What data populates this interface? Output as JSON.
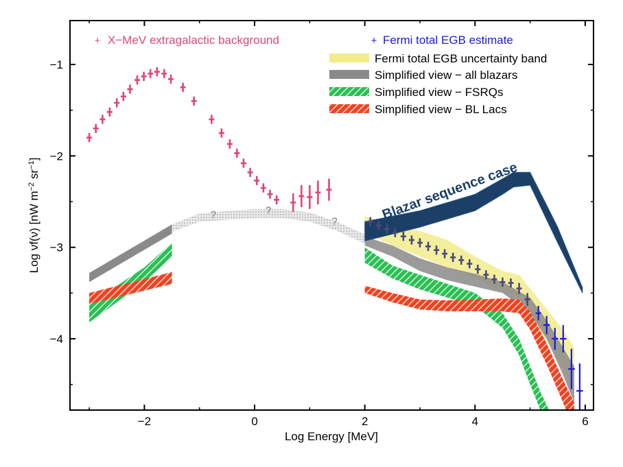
{
  "chart_data": {
    "type": "line",
    "title": "",
    "xlabel": "Log Energy [MeV]",
    "ylabel_main": "Log νf(ν) [nW m",
    "ylabel_sup1": "−2",
    "ylabel_mid": " sr",
    "ylabel_sup2": "−1",
    "ylabel_end": "]",
    "xlim": [
      -3.35,
      6.15
    ],
    "ylim": [
      -4.78,
      -0.52
    ],
    "xticks": [
      -2,
      0,
      2,
      4,
      6
    ],
    "xtick_labels": [
      "−2",
      "0",
      "2",
      "4",
      "6"
    ],
    "yticks": [
      -1,
      -2,
      -3,
      -4
    ],
    "ytick_labels": [
      "−1",
      "−2",
      "−3",
      "−4"
    ],
    "grid": false,
    "colors": {
      "xmev": "#e0457b",
      "fermi": "#1a1ae0",
      "band": "#f2ec8c",
      "blazars": "#8a8a8a",
      "fsrq": "#22b34a",
      "bllac": "#ee4422",
      "sequence": "#1b3f66",
      "bridge": "#cfcfcf"
    },
    "legend": {
      "xmev_label": "X−MeV extragalactic background",
      "fermi_label": "Fermi total EGB estimate",
      "band_label": "Fermi total EGB uncertainty band",
      "blazars_label": "Simplified view − all blazars",
      "fsrq_label": "Simplified view − FSRQs",
      "bllac_label": "Simplified view − BL Lacs"
    },
    "annotation_text": "Blazar sequence case",
    "question_marks": [
      {
        "text": "?",
        "x": -0.75,
        "y": -2.68
      },
      {
        "text": "?",
        "x": 0.25,
        "y": -2.63
      },
      {
        "text": "?",
        "x": 1.45,
        "y": -2.75
      }
    ],
    "xmev_points": [
      {
        "x": -3.0,
        "y": -1.8,
        "ex": 0.05,
        "ey": 0.05
      },
      {
        "x": -2.88,
        "y": -1.7,
        "ex": 0.05,
        "ey": 0.05
      },
      {
        "x": -2.76,
        "y": -1.6,
        "ex": 0.05,
        "ey": 0.05
      },
      {
        "x": -2.63,
        "y": -1.52,
        "ex": 0.05,
        "ey": 0.05
      },
      {
        "x": -2.5,
        "y": -1.42,
        "ex": 0.05,
        "ey": 0.05
      },
      {
        "x": -2.38,
        "y": -1.35,
        "ex": 0.05,
        "ey": 0.05
      },
      {
        "x": -2.26,
        "y": -1.27,
        "ex": 0.05,
        "ey": 0.05
      },
      {
        "x": -2.13,
        "y": -1.17,
        "ex": 0.05,
        "ey": 0.05
      },
      {
        "x": -2.01,
        "y": -1.13,
        "ex": 0.05,
        "ey": 0.05
      },
      {
        "x": -1.89,
        "y": -1.1,
        "ex": 0.05,
        "ey": 0.05
      },
      {
        "x": -1.77,
        "y": -1.08,
        "ex": 0.05,
        "ey": 0.05
      },
      {
        "x": -1.64,
        "y": -1.1,
        "ex": 0.05,
        "ey": 0.05
      },
      {
        "x": -1.52,
        "y": -1.16,
        "ex": 0.05,
        "ey": 0.05
      },
      {
        "x": -1.3,
        "y": -1.25,
        "ex": 0.05,
        "ey": 0.05
      },
      {
        "x": -1.1,
        "y": -1.4,
        "ex": 0.05,
        "ey": 0.05
      },
      {
        "x": -0.78,
        "y": -1.6,
        "ex": 0.05,
        "ey": 0.05
      },
      {
        "x": -0.6,
        "y": -1.75,
        "ex": 0.05,
        "ey": 0.05
      },
      {
        "x": -0.45,
        "y": -1.87,
        "ex": 0.05,
        "ey": 0.05
      },
      {
        "x": -0.32,
        "y": -1.97,
        "ex": 0.05,
        "ey": 0.05
      },
      {
        "x": -0.2,
        "y": -2.08,
        "ex": 0.05,
        "ey": 0.05
      },
      {
        "x": -0.08,
        "y": -2.18,
        "ex": 0.05,
        "ey": 0.05
      },
      {
        "x": 0.04,
        "y": -2.27,
        "ex": 0.05,
        "ey": 0.05
      },
      {
        "x": 0.16,
        "y": -2.35,
        "ex": 0.05,
        "ey": 0.05
      },
      {
        "x": 0.28,
        "y": -2.42,
        "ex": 0.05,
        "ey": 0.05
      },
      {
        "x": 0.4,
        "y": -2.48,
        "ex": 0.05,
        "ey": 0.05
      },
      {
        "x": 0.7,
        "y": -2.51,
        "ex": 0.05,
        "ey": 0.1
      },
      {
        "x": 0.85,
        "y": -2.44,
        "ex": 0.05,
        "ey": 0.12
      },
      {
        "x": 1.0,
        "y": -2.45,
        "ex": 0.05,
        "ey": 0.13
      },
      {
        "x": 1.15,
        "y": -2.4,
        "ex": 0.05,
        "ey": 0.13
      },
      {
        "x": 1.35,
        "y": -2.37,
        "ex": 0.05,
        "ey": 0.12
      }
    ],
    "fermi_points": [
      {
        "x": 2.1,
        "y": -2.72,
        "ex": 0.05,
        "ey": 0.05
      },
      {
        "x": 2.25,
        "y": -2.76,
        "ex": 0.05,
        "ey": 0.05
      },
      {
        "x": 2.4,
        "y": -2.8,
        "ex": 0.05,
        "ey": 0.05
      },
      {
        "x": 2.55,
        "y": -2.84,
        "ex": 0.05,
        "ey": 0.05
      },
      {
        "x": 2.7,
        "y": -2.88,
        "ex": 0.05,
        "ey": 0.05
      },
      {
        "x": 2.85,
        "y": -2.92,
        "ex": 0.05,
        "ey": 0.05
      },
      {
        "x": 3.0,
        "y": -2.95,
        "ex": 0.05,
        "ey": 0.05
      },
      {
        "x": 3.15,
        "y": -2.99,
        "ex": 0.05,
        "ey": 0.05
      },
      {
        "x": 3.3,
        "y": -3.03,
        "ex": 0.05,
        "ey": 0.05
      },
      {
        "x": 3.45,
        "y": -3.07,
        "ex": 0.05,
        "ey": 0.05
      },
      {
        "x": 3.6,
        "y": -3.11,
        "ex": 0.05,
        "ey": 0.05
      },
      {
        "x": 3.75,
        "y": -3.14,
        "ex": 0.05,
        "ey": 0.05
      },
      {
        "x": 3.9,
        "y": -3.18,
        "ex": 0.05,
        "ey": 0.05
      },
      {
        "x": 4.05,
        "y": -3.24,
        "ex": 0.05,
        "ey": 0.05
      },
      {
        "x": 4.2,
        "y": -3.3,
        "ex": 0.05,
        "ey": 0.05
      },
      {
        "x": 4.35,
        "y": -3.35,
        "ex": 0.05,
        "ey": 0.05
      },
      {
        "x": 4.5,
        "y": -3.38,
        "ex": 0.05,
        "ey": 0.05
      },
      {
        "x": 4.65,
        "y": -3.39,
        "ex": 0.05,
        "ey": 0.05
      },
      {
        "x": 4.8,
        "y": -3.45,
        "ex": 0.05,
        "ey": 0.06
      },
      {
        "x": 4.95,
        "y": -3.57,
        "ex": 0.05,
        "ey": 0.07
      },
      {
        "x": 5.15,
        "y": -3.72,
        "ex": 0.05,
        "ey": 0.08
      },
      {
        "x": 5.3,
        "y": -3.85,
        "ex": 0.06,
        "ey": 0.1
      },
      {
        "x": 5.45,
        "y": -4.0,
        "ex": 0.06,
        "ey": 0.12
      },
      {
        "x": 5.6,
        "y": -4.0,
        "ex": 0.06,
        "ey": 0.15
      },
      {
        "x": 5.75,
        "y": -4.33,
        "ex": 0.06,
        "ey": 0.22
      },
      {
        "x": 5.9,
        "y": -4.57,
        "ex": 0.06,
        "ey": 0.3
      }
    ],
    "band": {
      "x": [
        2.0,
        2.5,
        3.0,
        3.5,
        4.0,
        4.5,
        4.8,
        5.0,
        5.2,
        5.4,
        5.6,
        5.8
      ],
      "upper": [
        -2.66,
        -2.76,
        -2.82,
        -2.92,
        -3.1,
        -3.26,
        -3.3,
        -3.45,
        -3.6,
        -3.75,
        -3.9,
        -4.1
      ],
      "lower": [
        -2.84,
        -2.98,
        -3.1,
        -3.22,
        -3.34,
        -3.48,
        -3.55,
        -3.72,
        -3.95,
        -4.1,
        -4.3,
        -4.6
      ]
    },
    "blazars": {
      "left": {
        "x": [
          -3.0,
          -1.5
        ],
        "upper": [
          -3.28,
          -2.75
        ],
        "lower": [
          -3.38,
          -2.85
        ]
      },
      "right": {
        "x": [
          2.0,
          2.5,
          3.0,
          3.5,
          4.0,
          4.5,
          5.0,
          5.3,
          5.6,
          5.8
        ],
        "upper": [
          -2.88,
          -2.98,
          -3.12,
          -3.22,
          -3.29,
          -3.38,
          -3.55,
          -3.8,
          -4.1,
          -4.3
        ],
        "lower": [
          -2.98,
          -3.1,
          -3.26,
          -3.36,
          -3.43,
          -3.5,
          -3.72,
          -4.0,
          -4.4,
          -4.7
        ]
      }
    },
    "bridge": {
      "x": [
        -1.5,
        -1.0,
        0.0,
        0.5,
        1.0,
        1.5,
        2.0
      ],
      "upper": [
        -2.75,
        -2.63,
        -2.58,
        -2.58,
        -2.62,
        -2.72,
        -2.86
      ],
      "lower": [
        -2.83,
        -2.72,
        -2.68,
        -2.68,
        -2.72,
        -2.82,
        -2.96
      ]
    },
    "fsrq": {
      "left": {
        "x": [
          -3.0,
          -2.5,
          -2.0,
          -1.5
        ],
        "upper": [
          -3.6,
          -3.42,
          -3.22,
          -2.95
        ],
        "lower": [
          -3.82,
          -3.6,
          -3.38,
          -3.1
        ]
      },
      "right": {
        "x": [
          2.0,
          2.5,
          3.0,
          3.5,
          4.0,
          4.5,
          4.8,
          5.0,
          5.2,
          5.4
        ],
        "upper": [
          -3.0,
          -3.2,
          -3.3,
          -3.4,
          -3.5,
          -3.72,
          -4.0,
          -4.3,
          -4.6,
          -4.85
        ],
        "lower": [
          -3.17,
          -3.34,
          -3.46,
          -3.55,
          -3.64,
          -3.88,
          -4.18,
          -4.5,
          -4.8,
          -5.0
        ]
      }
    },
    "bllac": {
      "left": {
        "x": [
          -3.0,
          -1.5
        ],
        "upper": [
          -3.5,
          -3.27
        ],
        "lower": [
          -3.62,
          -3.4
        ]
      },
      "right": {
        "x": [
          2.0,
          2.5,
          3.0,
          3.5,
          4.0,
          4.5,
          4.8,
          5.0,
          5.3,
          5.6,
          5.8
        ],
        "upper": [
          -3.42,
          -3.5,
          -3.57,
          -3.58,
          -3.57,
          -3.56,
          -3.57,
          -3.7,
          -4.05,
          -4.45,
          -4.7
        ],
        "lower": [
          -3.5,
          -3.6,
          -3.68,
          -3.7,
          -3.7,
          -3.7,
          -3.72,
          -3.9,
          -4.28,
          -4.7,
          -5.0
        ]
      }
    },
    "sequence": {
      "x": [
        2.0,
        3.0,
        4.0,
        4.5,
        4.7,
        5.0,
        5.5,
        5.95
      ],
      "upper": [
        -2.72,
        -2.6,
        -2.42,
        -2.25,
        -2.18,
        -2.18,
        -2.78,
        -3.44
      ],
      "lower": [
        -2.93,
        -2.78,
        -2.6,
        -2.42,
        -2.34,
        -2.32,
        -2.95,
        -3.5
      ]
    }
  }
}
